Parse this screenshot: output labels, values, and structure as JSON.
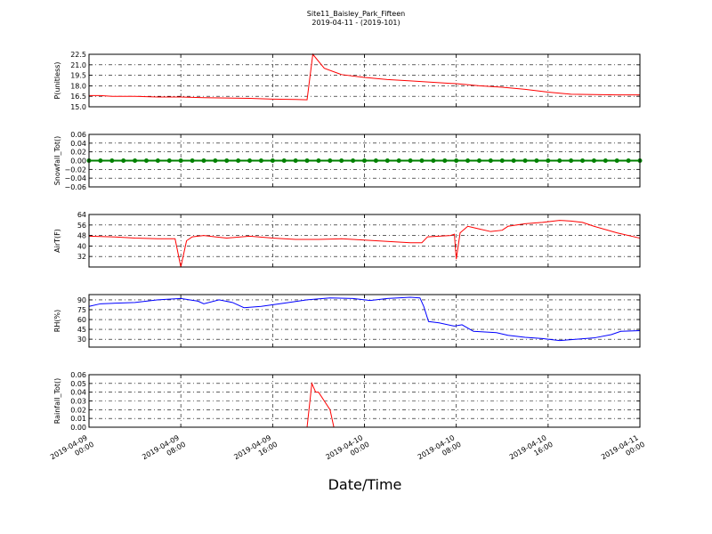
{
  "title": "Site11_Baisley_Park_Fifteen",
  "subtitle": "2019-04-11 - (2019-101)",
  "xlabel": "Date/Time",
  "xlim": [
    "2019-04-09 00:00",
    "2019-04-11 00:00"
  ],
  "xticks": [
    "2019-04-09 00:00",
    "2019-04-09 08:00",
    "2019-04-09 16:00",
    "2019-04-10 00:00",
    "2019-04-10 08:00",
    "2019-04-10 16:00",
    "2019-04-11 00:00"
  ],
  "chart_data": [
    {
      "type": "line",
      "ylabel": "P(unitless)",
      "ylim": [
        15,
        22.5
      ],
      "grid": true,
      "yticks": [
        {
          "value": 15,
          "label": "15.0"
        },
        16.5,
        {
          "value": 18,
          "label": "18.0"
        },
        19.5,
        {
          "value": 21,
          "label": "21.0"
        },
        22.5
      ],
      "x": [
        "2019-04-09 00:00",
        "2019-04-09 01:00",
        "2019-04-09 02:00",
        "2019-04-09 04:00",
        "2019-04-09 06:00",
        "2019-04-09 08:00",
        "2019-04-09 10:00",
        "2019-04-09 12:00",
        "2019-04-09 14:00",
        "2019-04-09 16:00",
        "2019-04-09 18:00",
        "2019-04-09 19:00",
        "2019-04-09 19:30",
        "2019-04-09 20:30",
        "2019-04-09 22:00",
        "2019-04-10 00:00",
        "2019-04-10 02:00",
        "2019-04-10 04:00",
        "2019-04-10 06:00",
        "2019-04-10 08:00",
        "2019-04-10 10:00",
        "2019-04-10 12:00",
        "2019-04-10 14:00",
        "2019-04-10 16:00",
        "2019-04-10 18:00",
        "2019-04-10 20:00",
        "2019-04-10 22:00",
        "2019-04-11 00:00"
      ],
      "series": [
        {
          "color": "#ff0000",
          "values": [
            16.6,
            16.6,
            16.5,
            16.5,
            16.4,
            16.4,
            16.3,
            16.25,
            16.2,
            16.1,
            16.05,
            16.0,
            22.5,
            20.5,
            19.6,
            19.2,
            18.9,
            18.7,
            18.5,
            18.3,
            18.0,
            17.8,
            17.5,
            17.1,
            16.8,
            16.75,
            16.7,
            16.7
          ]
        }
      ]
    },
    {
      "type": "line",
      "ylabel": "Snowfall_Tot()",
      "ylim": [
        -0.06,
        0.06
      ],
      "grid": true,
      "markers": true,
      "yticks": [
        {
          "value": -0.06,
          "label": "−0.06"
        },
        {
          "value": -0.04,
          "label": "−0.04"
        },
        {
          "value": -0.02,
          "label": "−0.02"
        },
        {
          "value": 0,
          "label": "0.00"
        },
        0.02,
        0.04,
        0.06
      ],
      "x": [
        "2019-04-09 00:00",
        "2019-04-09 01:00",
        "2019-04-09 02:00",
        "2019-04-09 03:00",
        "2019-04-09 04:00",
        "2019-04-09 05:00",
        "2019-04-09 06:00",
        "2019-04-09 07:00",
        "2019-04-09 08:00",
        "2019-04-09 09:00",
        "2019-04-09 10:00",
        "2019-04-09 11:00",
        "2019-04-09 12:00",
        "2019-04-09 13:00",
        "2019-04-09 14:00",
        "2019-04-09 15:00",
        "2019-04-09 16:00",
        "2019-04-09 17:00",
        "2019-04-09 18:00",
        "2019-04-09 19:00",
        "2019-04-09 20:00",
        "2019-04-09 21:00",
        "2019-04-09 22:00",
        "2019-04-09 23:00",
        "2019-04-10 00:00",
        "2019-04-10 01:00",
        "2019-04-10 02:00",
        "2019-04-10 03:00",
        "2019-04-10 04:00",
        "2019-04-10 05:00",
        "2019-04-10 06:00",
        "2019-04-10 07:00",
        "2019-04-10 08:00",
        "2019-04-10 09:00",
        "2019-04-10 10:00",
        "2019-04-10 11:00",
        "2019-04-10 12:00",
        "2019-04-10 13:00",
        "2019-04-10 14:00",
        "2019-04-10 15:00",
        "2019-04-10 16:00",
        "2019-04-10 17:00",
        "2019-04-10 18:00",
        "2019-04-10 19:00",
        "2019-04-10 20:00",
        "2019-04-10 21:00",
        "2019-04-10 22:00",
        "2019-04-10 23:00",
        "2019-04-11 00:00"
      ],
      "series": [
        {
          "color": "#008000",
          "values": [
            0,
            0,
            0,
            0,
            0,
            0,
            0,
            0,
            0,
            0,
            0,
            0,
            0,
            0,
            0,
            0,
            0,
            0,
            0,
            0,
            0,
            0,
            0,
            0,
            0,
            0,
            0,
            0,
            0,
            0,
            0,
            0,
            0,
            0,
            0,
            0,
            0,
            0,
            0,
            0,
            0,
            0,
            0,
            0,
            0,
            0,
            0,
            0,
            0
          ]
        }
      ]
    },
    {
      "type": "line",
      "ylabel": "AirT(F)",
      "ylim": [
        24,
        64
      ],
      "grid": true,
      "yticks": [
        32,
        40,
        48,
        56,
        64
      ],
      "x": [
        "2019-04-09 00:00",
        "2019-04-09 02:00",
        "2019-04-09 04:00",
        "2019-04-09 06:00",
        "2019-04-09 07:30",
        "2019-04-09 08:00",
        "2019-04-09 08:30",
        "2019-04-09 09:00",
        "2019-04-09 10:00",
        "2019-04-09 11:00",
        "2019-04-09 12:00",
        "2019-04-09 14:00",
        "2019-04-09 16:00",
        "2019-04-09 18:00",
        "2019-04-09 20:00",
        "2019-04-09 22:00",
        "2019-04-10 00:00",
        "2019-04-10 02:00",
        "2019-04-10 04:00",
        "2019-04-10 05:00",
        "2019-04-10 05:30",
        "2019-04-10 07:30",
        "2019-04-10 07:50",
        "2019-04-10 08:00",
        "2019-04-10 08:20",
        "2019-04-10 09:00",
        "2019-04-10 10:00",
        "2019-04-10 11:00",
        "2019-04-10 12:00",
        "2019-04-10 12:30",
        "2019-04-10 14:00",
        "2019-04-10 15:30",
        "2019-04-10 17:00",
        "2019-04-10 18:00",
        "2019-04-10 19:00",
        "2019-04-10 20:00",
        "2019-04-10 22:00",
        "2019-04-11 00:00"
      ],
      "series": [
        {
          "color": "#ff0000",
          "values": [
            47.5,
            47,
            46,
            45.5,
            45.5,
            24,
            44,
            47,
            48,
            47,
            46,
            47.5,
            46,
            45,
            45,
            45.5,
            44.5,
            43.5,
            42.5,
            42.5,
            47,
            48,
            49,
            30,
            50,
            55,
            53,
            51,
            52,
            55,
            57,
            58,
            59.5,
            59,
            58,
            55,
            50,
            46
          ]
        }
      ]
    },
    {
      "type": "line",
      "ylabel": "RH(%)",
      "ylim": [
        18,
        98
      ],
      "grid": true,
      "yticks": [
        30,
        45,
        60,
        75,
        90
      ],
      "x": [
        "2019-04-09 00:00",
        "2019-04-09 01:00",
        "2019-04-09 04:00",
        "2019-04-09 06:00",
        "2019-04-09 08:00",
        "2019-04-09 09:30",
        "2019-04-09 10:00",
        "2019-04-09 11:20",
        "2019-04-09 12:30",
        "2019-04-09 13:30",
        "2019-04-09 15:00",
        "2019-04-09 17:00",
        "2019-04-09 19:00",
        "2019-04-09 21:00",
        "2019-04-09 23:00",
        "2019-04-10 00:30",
        "2019-04-10 02:00",
        "2019-04-10 04:00",
        "2019-04-10 04:50",
        "2019-04-10 05:10",
        "2019-04-10 05:35",
        "2019-04-10 06:30",
        "2019-04-10 07:50",
        "2019-04-10 08:30",
        "2019-04-10 09:30",
        "2019-04-10 11:30",
        "2019-04-10 12:30",
        "2019-04-10 14:00",
        "2019-04-10 15:30",
        "2019-04-10 17:00",
        "2019-04-10 18:30",
        "2019-04-10 20:00",
        "2019-04-10 21:30",
        "2019-04-10 22:20",
        "2019-04-11 00:00"
      ],
      "series": [
        {
          "color": "#0000ff",
          "values": [
            80,
            84,
            86,
            90,
            92,
            88,
            84,
            90,
            86,
            78,
            80,
            85,
            90,
            93,
            92,
            89,
            92,
            94,
            93,
            80,
            57,
            55,
            50,
            52,
            42,
            40,
            36,
            33,
            31,
            28,
            30,
            32,
            37,
            42,
            43
          ]
        }
      ]
    },
    {
      "type": "line",
      "ylabel": "Rainfall_Tot()",
      "ylim": [
        0,
        0.06
      ],
      "grid": true,
      "yticks": [
        {
          "value": 0,
          "label": "0.00"
        },
        0.01,
        0.02,
        0.03,
        0.04,
        0.05,
        0.06
      ],
      "x": [
        "2019-04-09 00:00",
        "2019-04-09 19:00",
        "2019-04-09 19:25",
        "2019-04-09 19:45",
        "2019-04-09 20:00",
        "2019-04-09 20:30",
        "2019-04-09 21:00",
        "2019-04-09 21:20",
        "2019-04-11 00:00"
      ],
      "series": [
        {
          "color": "#ff0000",
          "values": [
            0,
            0,
            0.05,
            0.04,
            0.04,
            0.03,
            0.02,
            0,
            0
          ]
        }
      ]
    }
  ]
}
